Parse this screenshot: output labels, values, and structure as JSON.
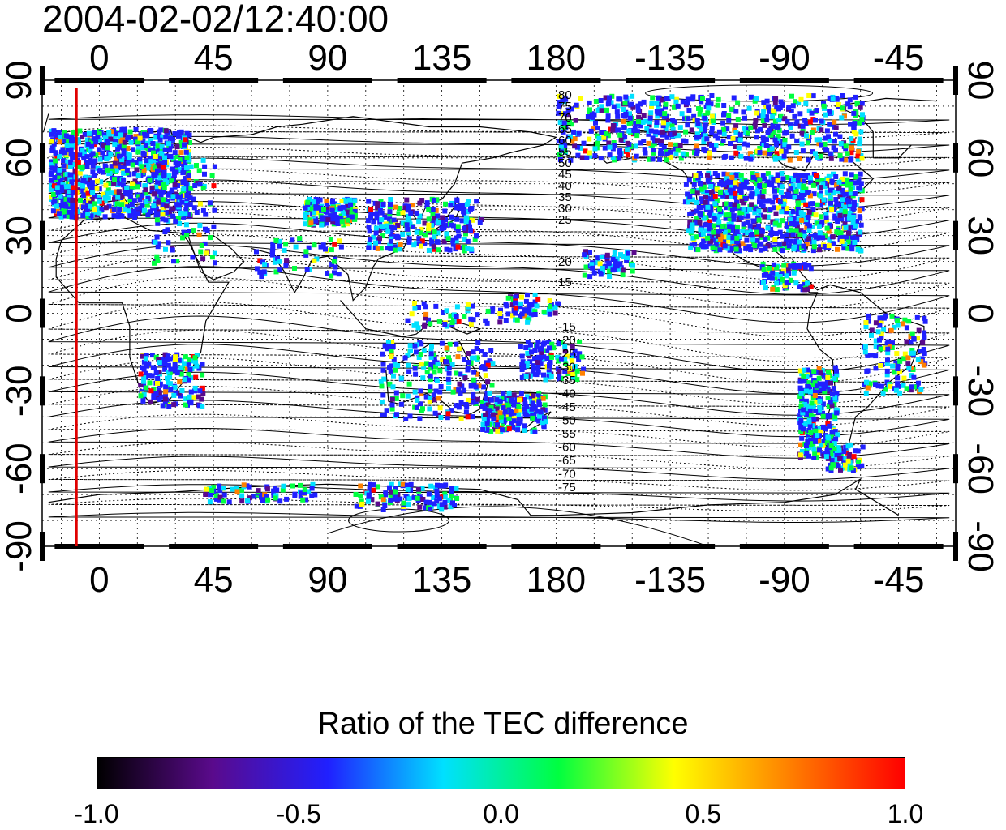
{
  "title": "2004-02-02/12:40:00",
  "chart_data": {
    "type": "map",
    "projection": "equirectangular",
    "lon_center": 135,
    "x_ticks": [
      "0",
      "45",
      "90",
      "135",
      "180",
      "-135",
      "-90",
      "-45"
    ],
    "y_ticks": [
      "90",
      "60",
      "30",
      "0",
      "-30",
      "-60",
      "-90"
    ],
    "y_tick_values": [
      90,
      60,
      30,
      0,
      -30,
      -60,
      -90
    ],
    "x_tick_values": [
      0,
      45,
      90,
      135,
      180,
      225,
      270,
      315
    ],
    "xlim": [
      -22.5,
      337.5
    ],
    "ylim": [
      -90,
      90
    ],
    "grid": true,
    "reference_longitude_line": -9,
    "contour_labels": {
      "north": [
        "80",
        "75",
        "70",
        "65",
        "60",
        "55",
        "50",
        "45",
        "40",
        "35",
        "30",
        "25",
        "20",
        "15"
      ],
      "south": [
        "-15",
        "-20",
        "-25",
        "-30",
        "-35",
        "-40",
        "-45",
        "-50",
        "-55",
        "-60",
        "-65",
        "-70",
        "-75"
      ]
    },
    "colorbar": {
      "title": "Ratio of the TEC difference",
      "ticks": [
        "-1.0",
        "-0.5",
        "0.0",
        "0.5",
        "1.0"
      ],
      "range": [
        -1.0,
        1.0
      ],
      "colors": [
        "#000000",
        "#5a0a8c",
        "#2020ff",
        "#00e0ff",
        "#00ff40",
        "#ffff00",
        "#ff8000",
        "#ff0000"
      ]
    }
  }
}
